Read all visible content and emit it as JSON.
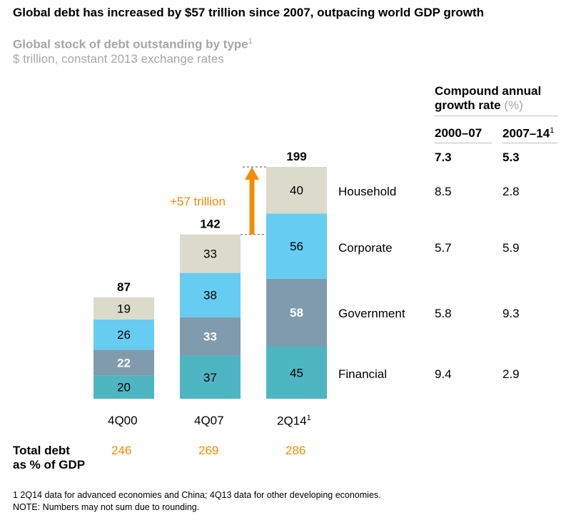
{
  "title": "Global debt has increased by $57 trillion since 2007, outpacing world GDP growth",
  "subtitle": "Global stock of debt outstanding by type",
  "subtitle_footnote_mark": "1",
  "units": "$ trillion, constant 2013 exchange rates",
  "cagr_header": {
    "line1": "Compound annual",
    "line2": "growth rate",
    "unit": "(%)"
  },
  "cagr_columns": [
    {
      "label": "2000–07",
      "mark": ""
    },
    {
      "label": "2007–14",
      "mark": "1"
    }
  ],
  "cagr_totals": [
    "7.3",
    "5.3"
  ],
  "cagr_rows": [
    {
      "type": "Household",
      "c1": "8.5",
      "c2": "2.8"
    },
    {
      "type": "Corporate",
      "c1": "5.7",
      "c2": "5.9"
    },
    {
      "type": "Government",
      "c1": "5.8",
      "c2": "9.3"
    },
    {
      "type": "Financial",
      "c1": "9.4",
      "c2": "2.9"
    }
  ],
  "increase_label": "+57 trillion",
  "gdp": {
    "label_line1": "Total debt",
    "label_line2": "as % of GDP",
    "values": [
      "246",
      "269",
      "286"
    ]
  },
  "footnote": "1  2Q14 data for advanced economies and China; 4Q13 data for other developing economies.",
  "note": "NOTE: Numbers may not sum due to rounding.",
  "colors": {
    "financial": "#4db6c2",
    "government": "#7f9bad",
    "corporate": "#66ccf2",
    "household": "#dcdacb",
    "accent": "#f28c00"
  },
  "chart_data": {
    "type": "bar",
    "stacked": true,
    "categories": [
      "4Q00",
      "4Q07",
      "2Q14"
    ],
    "category_marks": [
      "",
      "",
      "1"
    ],
    "totals": [
      87,
      142,
      199
    ],
    "series": [
      {
        "name": "Financial",
        "values": [
          20,
          37,
          45
        ]
      },
      {
        "name": "Government",
        "values": [
          22,
          33,
          58
        ]
      },
      {
        "name": "Corporate",
        "values": [
          26,
          38,
          56
        ]
      },
      {
        "name": "Household",
        "values": [
          19,
          33,
          40
        ]
      }
    ],
    "title": "Global stock of debt outstanding by type",
    "ylabel": "$ trillion, constant 2013 exchange rates"
  }
}
